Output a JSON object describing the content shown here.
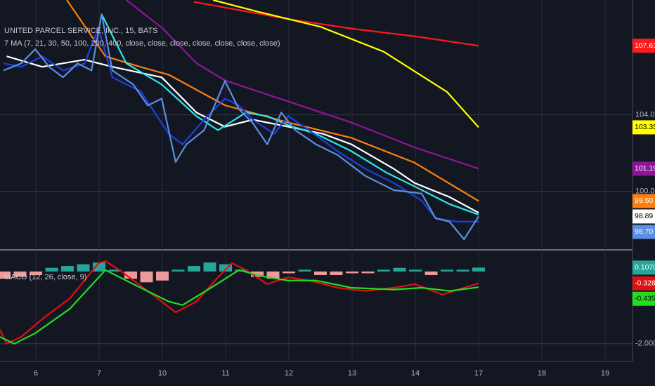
{
  "chart_data": [
    {
      "type": "line",
      "title": "UNITED PARCEL SERVICE, INC., 15, BATS",
      "subtitle": "7 MA (7, 21, 30, 50, 100, 200, 400, close, close, close, close, close, close, close)",
      "xlim": [
        -0.567,
        9.433
      ],
      "xticks": [
        {
          "value": 0,
          "label": "6"
        },
        {
          "value": 1,
          "label": "7"
        },
        {
          "value": 2,
          "label": "10"
        },
        {
          "value": 3,
          "label": "11"
        },
        {
          "value": 4,
          "label": "12"
        },
        {
          "value": 5,
          "label": "13"
        },
        {
          "value": 6,
          "label": "14"
        },
        {
          "value": 7,
          "label": "17"
        },
        {
          "value": 8,
          "label": "18"
        },
        {
          "value": 9,
          "label": "19"
        }
      ],
      "ylim": [
        96.95,
        110.0
      ],
      "yticks": [
        {
          "value": 104,
          "label": "104.00"
        },
        {
          "value": 100,
          "label": "100.00"
        }
      ],
      "grid": true,
      "series": [
        {
          "color": "#ff1a1a",
          "x": [
            2.5,
            3,
            4,
            5,
            6,
            7
          ],
          "values": [
            109.9,
            109.6,
            109.0,
            108.5,
            108.1,
            107.61
          ],
          "last_label": "107.61"
        },
        {
          "color": "#ffff00",
          "x": [
            2.8,
            3.5,
            4.5,
            5.5,
            6.5,
            7
          ],
          "values": [
            110.0,
            109.4,
            108.6,
            107.3,
            105.2,
            103.35
          ],
          "last_label": "103.35"
        },
        {
          "color": "#8e1599",
          "x": [
            1.43,
            2,
            2.54,
            2.99,
            3.99,
            4.99,
            5.99,
            7
          ],
          "values": [
            110.0,
            108.53,
            106.7,
            105.8,
            104.7,
            103.6,
            102.3,
            101.19
          ],
          "last_label": "101.19"
        },
        {
          "color": "#ff7f0e",
          "x": [
            0.49,
            1.1,
            1.66,
            2.1,
            2.99,
            3.99,
            4.99,
            5.99,
            7
          ],
          "values": [
            110.0,
            107.06,
            106.5,
            106.1,
            104.5,
            103.6,
            102.8,
            101.5,
            99.5
          ],
          "last_label": "99.50"
        },
        {
          "color": "#ffffff",
          "x": [
            -0.46,
            0.1,
            0.77,
            1.21,
            1.99,
            2.54,
            2.99,
            3.43,
            3.99,
            4.54,
            4.99,
            5.66,
            5.99,
            6.54,
            7
          ],
          "values": [
            107.06,
            106.51,
            106.88,
            106.51,
            105.96,
            104.12,
            103.38,
            103.75,
            103.38,
            103.01,
            102.46,
            101.18,
            100.44,
            99.71,
            98.89
          ],
          "last_label": "98.89"
        },
        {
          "color": "#2ee6e6",
          "x": [
            1.04,
            1.43,
            1.99,
            2.54,
            2.88,
            3.32,
            3.66,
            3.99,
            4.43,
            4.99,
            5.54,
            5.99,
            6.54,
            7
          ],
          "values": [
            109.26,
            106.69,
            105.59,
            103.93,
            103.2,
            104.12,
            103.93,
            103.46,
            103.01,
            102.1,
            100.99,
            100.26,
            99.34,
            98.79
          ]
        },
        {
          "color": "#1f3fe0",
          "x": [
            -0.51,
            -0.23,
            0.1,
            0.43,
            0.77,
            0.99,
            1.21,
            1.66,
            2.1,
            2.32,
            2.66,
            2.99,
            3.21,
            3.43,
            3.77,
            3.99,
            4.32,
            4.77,
            5.21,
            5.66,
            6.1,
            6.32,
            6.66,
            7
          ],
          "values": [
            106.69,
            106.51,
            107.06,
            106.32,
            106.69,
            108.53,
            105.96,
            105.22,
            103.01,
            102.46,
            103.75,
            104.85,
            104.49,
            103.75,
            103.01,
            103.93,
            103.2,
            102.1,
            101.18,
            100.44,
            99.52,
            98.6,
            98.42,
            98.42
          ]
        },
        {
          "color": "#5b8fe0",
          "x": [
            -0.51,
            -0.23,
            -0.01,
            0.21,
            0.43,
            0.66,
            0.88,
            1.04,
            1.21,
            1.54,
            1.77,
            1.99,
            2.21,
            2.38,
            2.66,
            2.99,
            3.21,
            3.43,
            3.66,
            3.88,
            4.1,
            4.43,
            4.77,
            5.21,
            5.66,
            6.1,
            6.32,
            6.54,
            6.77,
            7
          ],
          "values": [
            106.32,
            106.69,
            107.43,
            106.51,
            105.96,
            106.69,
            106.32,
            109.26,
            106.32,
            105.59,
            104.49,
            104.85,
            101.54,
            102.46,
            103.2,
            105.77,
            104.3,
            103.57,
            102.46,
            104.12,
            103.2,
            102.46,
            101.91,
            100.81,
            100.07,
            99.89,
            98.6,
            98.42,
            97.5,
            98.7
          ],
          "last_label": "98.70"
        }
      ]
    },
    {
      "type": "macd",
      "title": "MACD (12, 26, close, 9)",
      "ylim": [
        -2.49,
        0.56
      ],
      "yticks": [
        {
          "value": -2,
          "label": "-2.0000"
        }
      ],
      "grid": true,
      "histogram": {
        "positive_color": "#26a69a",
        "negative_color": "#ef9a9a",
        "x": [
          -0.5,
          -0.25,
          0,
          0.25,
          0.5,
          0.75,
          1,
          1.25,
          1.5,
          1.75,
          2,
          2.25,
          2.5,
          2.75,
          3,
          3.25,
          3.5,
          3.75,
          4,
          4.25,
          4.5,
          4.75,
          5,
          5.25,
          5.5,
          5.75,
          6,
          6.25,
          6.5,
          6.75,
          7
        ],
        "values": [
          -0.2,
          -0.15,
          -0.1,
          0.1,
          0.15,
          0.2,
          0.25,
          0.05,
          -0.2,
          -0.3,
          -0.25,
          0.05,
          0.15,
          0.25,
          0.2,
          0.05,
          -0.15,
          -0.2,
          -0.05,
          0.05,
          -0.1,
          -0.1,
          -0.05,
          -0.05,
          0.05,
          0.1,
          0.05,
          -0.1,
          0.05,
          0.05,
          0.107
        ],
        "last_label": "0.1070",
        "tag_color": "#26a69a"
      },
      "series": [
        {
          "color": "#e01010",
          "x": [
            -0.57,
            -0.46,
            -0.23,
            0.1,
            0.54,
            0.99,
            1.1,
            1.32,
            1.77,
            2.21,
            2.54,
            2.88,
            3.1,
            3.32,
            3.66,
            3.99,
            4.32,
            4.77,
            5.21,
            5.66,
            5.99,
            6.43,
            6.77,
            7
          ],
          "values": [
            -1.61,
            -2.0,
            -1.81,
            -1.32,
            -0.74,
            0.23,
            0.29,
            0.04,
            -0.54,
            -1.13,
            -0.83,
            -0.16,
            0.23,
            0.04,
            -0.35,
            -0.16,
            -0.25,
            -0.45,
            -0.54,
            -0.45,
            -0.35,
            -0.64,
            -0.45,
            -0.3283
          ],
          "last_label": "-0.3283"
        },
        {
          "color": "#22dd22",
          "x": [
            -0.57,
            -0.34,
            -0.01,
            0.54,
            1.1,
            1.54,
            2.1,
            2.32,
            2.77,
            3.21,
            3.66,
            3.99,
            4.43,
            4.99,
            5.66,
            6.1,
            6.54,
            7
          ],
          "values": [
            -1.81,
            -2.0,
            -1.71,
            -1.03,
            0.04,
            -0.35,
            -0.83,
            -0.93,
            -0.45,
            0.04,
            -0.16,
            -0.25,
            -0.25,
            -0.45,
            -0.5,
            -0.45,
            -0.54,
            -0.4353
          ],
          "last_label": "-0.4353"
        }
      ]
    }
  ]
}
